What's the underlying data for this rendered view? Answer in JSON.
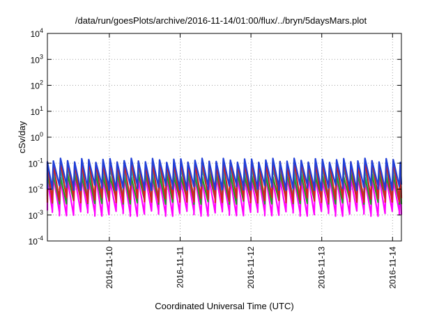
{
  "chart_data": {
    "type": "line",
    "title": "/data/run/goesPlots/archive/2016-11-14/01:00/flux/../bryn/5daysMars.plot",
    "xlabel": "Coordinated Universal Time (UTC)",
    "ylabel": "cSv/day",
    "yscale": "log",
    "ylim": [
      0.0001,
      10000
    ],
    "xlim": [
      "2016-11-09T03:00",
      "2016-11-14T03:00"
    ],
    "grid": true,
    "y_ticks": [
      {
        "base": "10",
        "exp": "-4"
      },
      {
        "base": "10",
        "exp": "-3"
      },
      {
        "base": "10",
        "exp": "-2"
      },
      {
        "base": "10",
        "exp": "-1"
      },
      {
        "base": "10",
        "exp": "0"
      },
      {
        "base": "10",
        "exp": "1"
      },
      {
        "base": "10",
        "exp": "2"
      },
      {
        "base": "10",
        "exp": "3"
      },
      {
        "base": "10",
        "exp": "4"
      }
    ],
    "x_ticks": [
      "2016-11-10",
      "2016-11-11",
      "2016-11-12",
      "2016-11-13",
      "2016-11-14"
    ],
    "pattern": {
      "period_hours": 2.4,
      "series": [
        {
          "color": "#1f3fd8",
          "peak": 0.13,
          "trough": 0.012
        },
        {
          "color": "#d62020",
          "peak": 0.11,
          "trough": 0.004
        },
        {
          "color": "#00b0c8",
          "peak": 0.06,
          "trough": 0.006
        },
        {
          "color": "#20a020",
          "peak": 0.035,
          "trough": 0.0035
        },
        {
          "color": "#ff00ff",
          "peak": 0.025,
          "trough": 0.0012
        }
      ]
    }
  }
}
